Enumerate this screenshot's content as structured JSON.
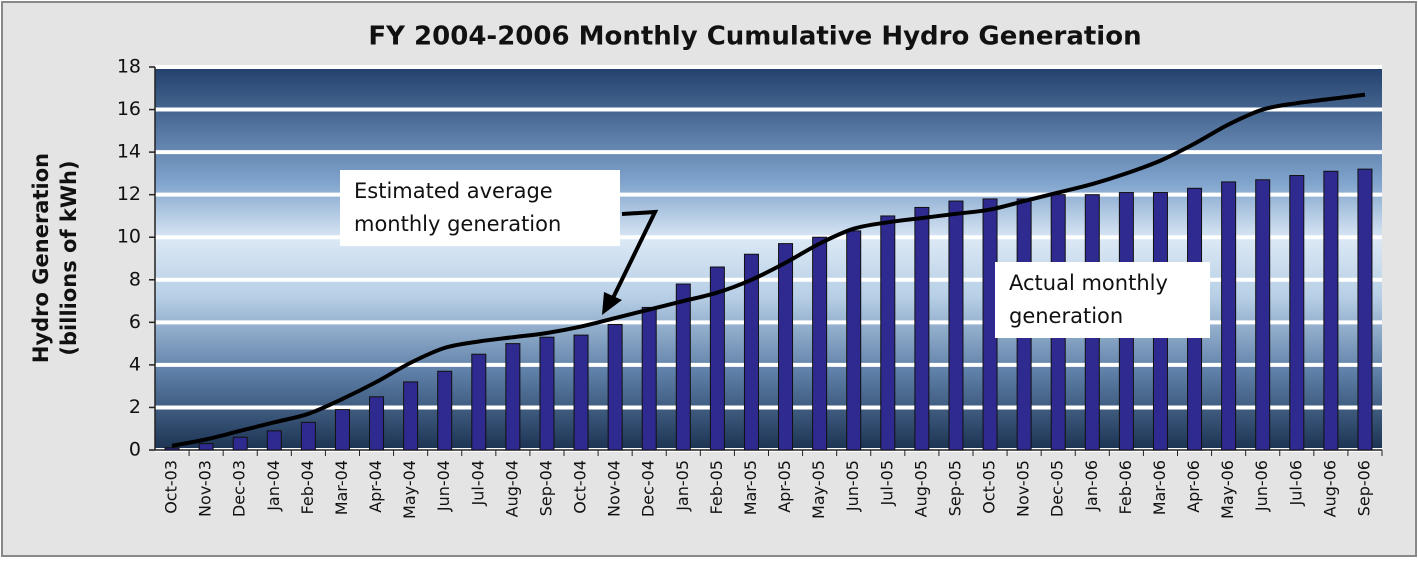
{
  "chart_data": {
    "type": "bar",
    "title": "FY 2004-2006 Monthly Cumulative Hydro Generation",
    "ylabel": [
      "Hydro Generation",
      "(billions of kWh)"
    ],
    "categories": [
      "Oct-03",
      "Nov-03",
      "Dec-03",
      "Jan-04",
      "Feb-04",
      "Mar-04",
      "Apr-04",
      "May-04",
      "Jun-04",
      "Jul-04",
      "Aug-04",
      "Sep-04",
      "Oct-04",
      "Nov-04",
      "Dec-04",
      "Jan-05",
      "Feb-05",
      "Mar-05",
      "Apr-05",
      "May-05",
      "Jun-05",
      "Jul-05",
      "Aug-05",
      "Sep-05",
      "Oct-05",
      "Nov-05",
      "Dec-05",
      "Jan-06",
      "Feb-06",
      "Mar-06",
      "Apr-06",
      "May-06",
      "Jun-06",
      "Jul-06",
      "Aug-06",
      "Sep-06"
    ],
    "series": [
      {
        "type": "bar",
        "color": "#2f2a8f",
        "values": [
          0.1,
          0.3,
          0.6,
          0.9,
          1.3,
          1.9,
          2.5,
          3.2,
          3.7,
          4.5,
          5.0,
          5.3,
          5.4,
          5.9,
          6.7,
          7.8,
          8.6,
          9.2,
          9.7,
          10.0,
          10.3,
          11.0,
          11.4,
          11.7,
          11.8,
          11.8,
          12.0,
          12.0,
          12.1,
          12.1,
          12.3,
          12.6,
          12.7,
          12.9,
          13.1,
          13.2
        ]
      },
      {
        "type": "line",
        "color": "#000000",
        "values": [
          0.2,
          0.5,
          0.9,
          1.3,
          1.7,
          2.4,
          3.2,
          4.1,
          4.8,
          5.1,
          5.3,
          5.5,
          5.8,
          6.2,
          6.6,
          7.0,
          7.4,
          8.0,
          8.8,
          9.7,
          10.4,
          10.7,
          10.9,
          11.1,
          11.3,
          11.7,
          12.1,
          12.5,
          13.0,
          13.6,
          14.4,
          15.3,
          16.0,
          16.3,
          16.5,
          16.7
        ]
      }
    ],
    "annotations": [
      {
        "text": [
          "Estimated average",
          "monthly generation"
        ]
      },
      {
        "text": [
          "Actual monthly",
          "generation"
        ]
      }
    ],
    "ylim": [
      0,
      18
    ],
    "yticks": [
      0,
      2,
      4,
      6,
      8,
      10,
      12,
      14,
      16,
      18
    ],
    "grid": true
  }
}
